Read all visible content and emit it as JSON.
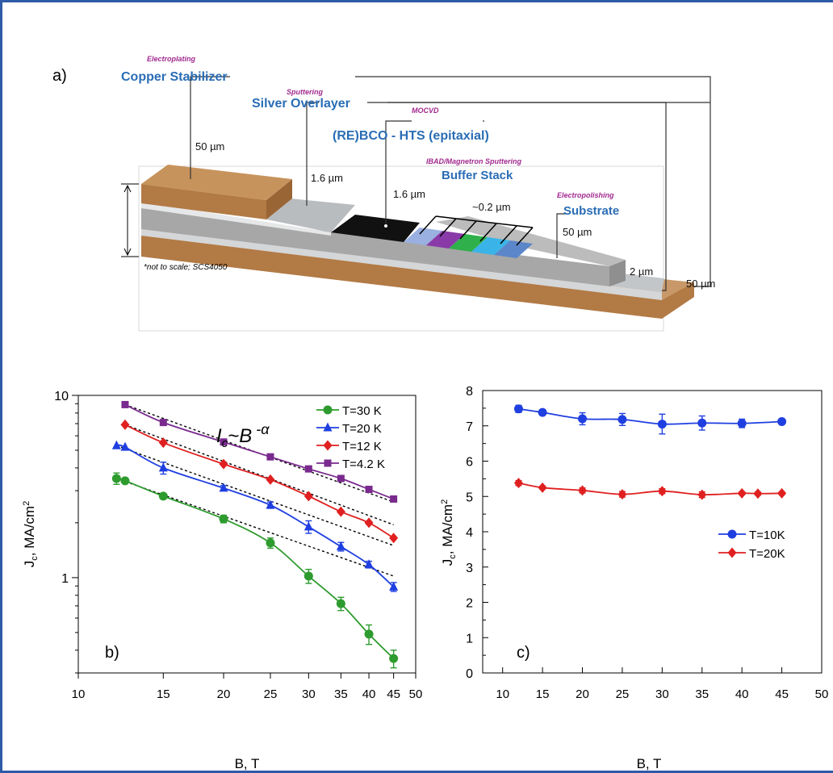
{
  "figure": {
    "panel_a": {
      "label": "a)",
      "note": "*not to scale; SCS4050",
      "layers": [
        {
          "process": "Electroplating",
          "name": "Copper Stabilizer",
          "thickness": "50 µm",
          "color": "#b27a45"
        },
        {
          "process": "Sputtering",
          "name": "Silver Overlayer",
          "thickness": "1.6 µm",
          "color": "#b9bcbf"
        },
        {
          "process": "MOCVD",
          "name": "(RE)BCO - HTS (epitaxial)",
          "thickness": "1.6 µm",
          "color": "#111111"
        },
        {
          "process": "IBAD/Magnetron Sputtering",
          "name": "Buffer Stack",
          "thickness": "~0.2 µm",
          "color": "#7b4fb8"
        },
        {
          "process": "Electropolishing",
          "name": "Substrate",
          "thickness": "50 µm",
          "color": "#a9a9a9"
        }
      ],
      "bottom_silver_thickness": "2 µm",
      "bottom_copper_thickness": "50 µm"
    }
  },
  "chart_data": [
    {
      "type": "line",
      "panel_label": "b)",
      "title": "",
      "xlabel": "B, T",
      "ylabel": "J_c, MA/cm^2",
      "xscale": "log",
      "yscale": "log",
      "xlim": [
        10,
        50
      ],
      "ylim": [
        0.3,
        10
      ],
      "xticks": [
        10,
        15,
        20,
        25,
        30,
        35,
        40,
        45,
        50
      ],
      "yticks": [
        1,
        10
      ],
      "annotation": "I_c~B^-α",
      "legend_position": "top-right",
      "series": [
        {
          "name": "T=30 K",
          "color": "#2e9b2e",
          "marker": "circle",
          "x": [
            12,
            12.5,
            15,
            20,
            25,
            30,
            35,
            40,
            45
          ],
          "y": [
            3.5,
            3.4,
            2.8,
            2.1,
            1.55,
            1.02,
            0.72,
            0.49,
            0.36
          ],
          "err": [
            0.25,
            0,
            0.08,
            0.1,
            0.1,
            0.09,
            0.06,
            0.06,
            0.04
          ],
          "fit_x": [
            12,
            45
          ],
          "fit_y": [
            3.5,
            1.02
          ]
        },
        {
          "name": "T=20 K",
          "color": "#1f3fe0",
          "marker": "triangle",
          "x": [
            12,
            12.5,
            15,
            20,
            25,
            30,
            35,
            40,
            45
          ],
          "y": [
            5.3,
            5.2,
            4.0,
            3.1,
            2.5,
            1.9,
            1.48,
            1.18,
            0.89
          ],
          "err": [
            0,
            0,
            0.3,
            0.1,
            0.1,
            0.15,
            0.08,
            0.05,
            0.05
          ],
          "fit_x": [
            12,
            45
          ],
          "fit_y": [
            5.3,
            1.5
          ]
        },
        {
          "name": "T=12 K",
          "color": "#e02020",
          "marker": "diamond",
          "x": [
            12.5,
            15,
            20,
            25,
            30,
            35,
            40,
            45
          ],
          "y": [
            6.9,
            5.5,
            4.2,
            3.45,
            2.8,
            2.3,
            2.0,
            1.65
          ],
          "err": [
            0,
            0,
            0,
            0,
            0,
            0,
            0,
            0
          ],
          "fit_x": [
            12.5,
            45
          ],
          "fit_y": [
            6.9,
            1.95
          ]
        },
        {
          "name": "T=4.2 K",
          "color": "#7a2a8e",
          "marker": "square",
          "x": [
            12.5,
            15,
            20,
            25,
            30,
            35,
            40,
            45
          ],
          "y": [
            8.9,
            7.1,
            5.55,
            4.6,
            3.95,
            3.5,
            3.05,
            2.7
          ],
          "err": [
            0,
            0,
            0,
            0,
            0,
            0,
            0,
            0
          ],
          "fit_x": [
            12.5,
            45
          ],
          "fit_y": [
            8.9,
            2.6
          ]
        }
      ]
    },
    {
      "type": "line",
      "panel_label": "c)",
      "title": "",
      "xlabel": "B, T",
      "ylabel": "J_c, MA/cm^2",
      "xlim": [
        7.5,
        50
      ],
      "ylim": [
        0,
        8
      ],
      "xticks": [
        10,
        15,
        20,
        25,
        30,
        35,
        40,
        45,
        50
      ],
      "yticks": [
        0,
        1,
        2,
        3,
        4,
        5,
        6,
        7,
        8
      ],
      "legend_position": "middle-right",
      "series": [
        {
          "name": "T=10K",
          "color": "#1f3fe0",
          "marker": "circle",
          "x": [
            12,
            15,
            20,
            25,
            30,
            35,
            40,
            45
          ],
          "y": [
            7.48,
            7.38,
            7.2,
            7.18,
            7.05,
            7.08,
            7.07,
            7.12
          ],
          "err": [
            0.1,
            0.04,
            0.17,
            0.17,
            0.28,
            0.2,
            0.12,
            0.07
          ]
        },
        {
          "name": "T=20K",
          "color": "#e02020",
          "marker": "diamond",
          "x": [
            12,
            15,
            20,
            25,
            30,
            35,
            40,
            42,
            45
          ],
          "y": [
            5.38,
            5.25,
            5.17,
            5.06,
            5.15,
            5.05,
            5.09,
            5.08,
            5.09
          ],
          "err": [
            0.07,
            0.04,
            0.07,
            0.08,
            0.07,
            0.08,
            0.04,
            0.04,
            0.04
          ]
        }
      ]
    }
  ]
}
